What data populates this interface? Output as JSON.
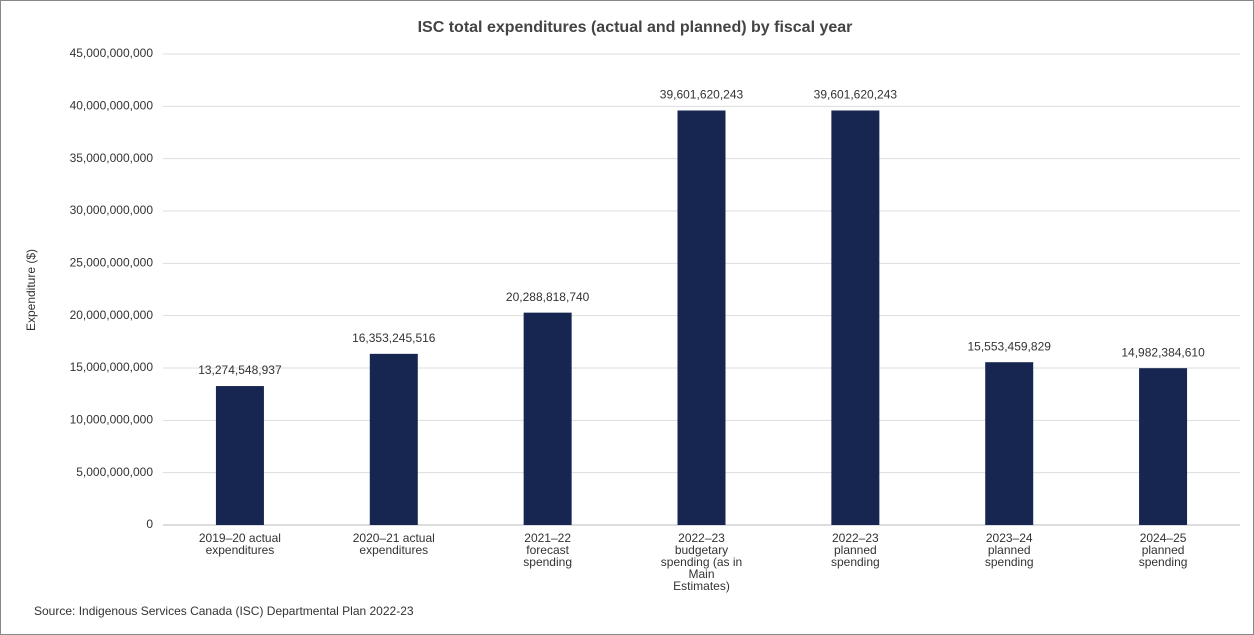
{
  "chart_data": {
    "type": "bar",
    "title": "ISC total expenditures (actual and planned) by fiscal year",
    "y_label": "Expenditure ($)",
    "source": "Source: Indigenous Services Canada (ISC) Departmental Plan 2022-23",
    "categories": [
      "2019–20 actual\nexpenditures",
      "2020–21 actual\nexpenditures",
      "2021–22\nforecast\nspending",
      "2022–23\nbudgetary\nspending (as in\nMain\nEstimates)",
      "2022–23\nplanned\nspending",
      "2023–24\nplanned\nspending",
      "2024–25\nplanned\nspending"
    ],
    "values": [
      13274548937,
      16353245516,
      20288818740,
      39601620243,
      39601620243,
      15553459829,
      14982384610
    ],
    "value_labels": [
      "13,274,548,937",
      "16,353,245,516",
      "20,288,818,740",
      "39,601,620,243",
      "39,601,620,243",
      "15,553,459,829",
      "14,982,384,610"
    ],
    "color": "#172651",
    "ylim": [
      0,
      45000000000
    ],
    "yticks": [
      0,
      {
        "value": 5000000000,
        "label": "5,000,000,000"
      },
      {
        "value": 10000000000,
        "label": "10,000,000,000"
      },
      {
        "value": 15000000000,
        "label": "15,000,000,000"
      },
      {
        "value": 20000000000,
        "label": "20,000,000,000"
      },
      {
        "value": 25000000000,
        "label": "25,000,000,000"
      },
      {
        "value": 30000000000,
        "label": "30,000,000,000"
      },
      {
        "value": 35000000000,
        "label": "35,000,000,000"
      },
      {
        "value": 40000000000,
        "label": "40,000,000,000"
      },
      {
        "value": 45000000000,
        "label": "45,000,000,000"
      }
    ],
    "grid": true
  }
}
